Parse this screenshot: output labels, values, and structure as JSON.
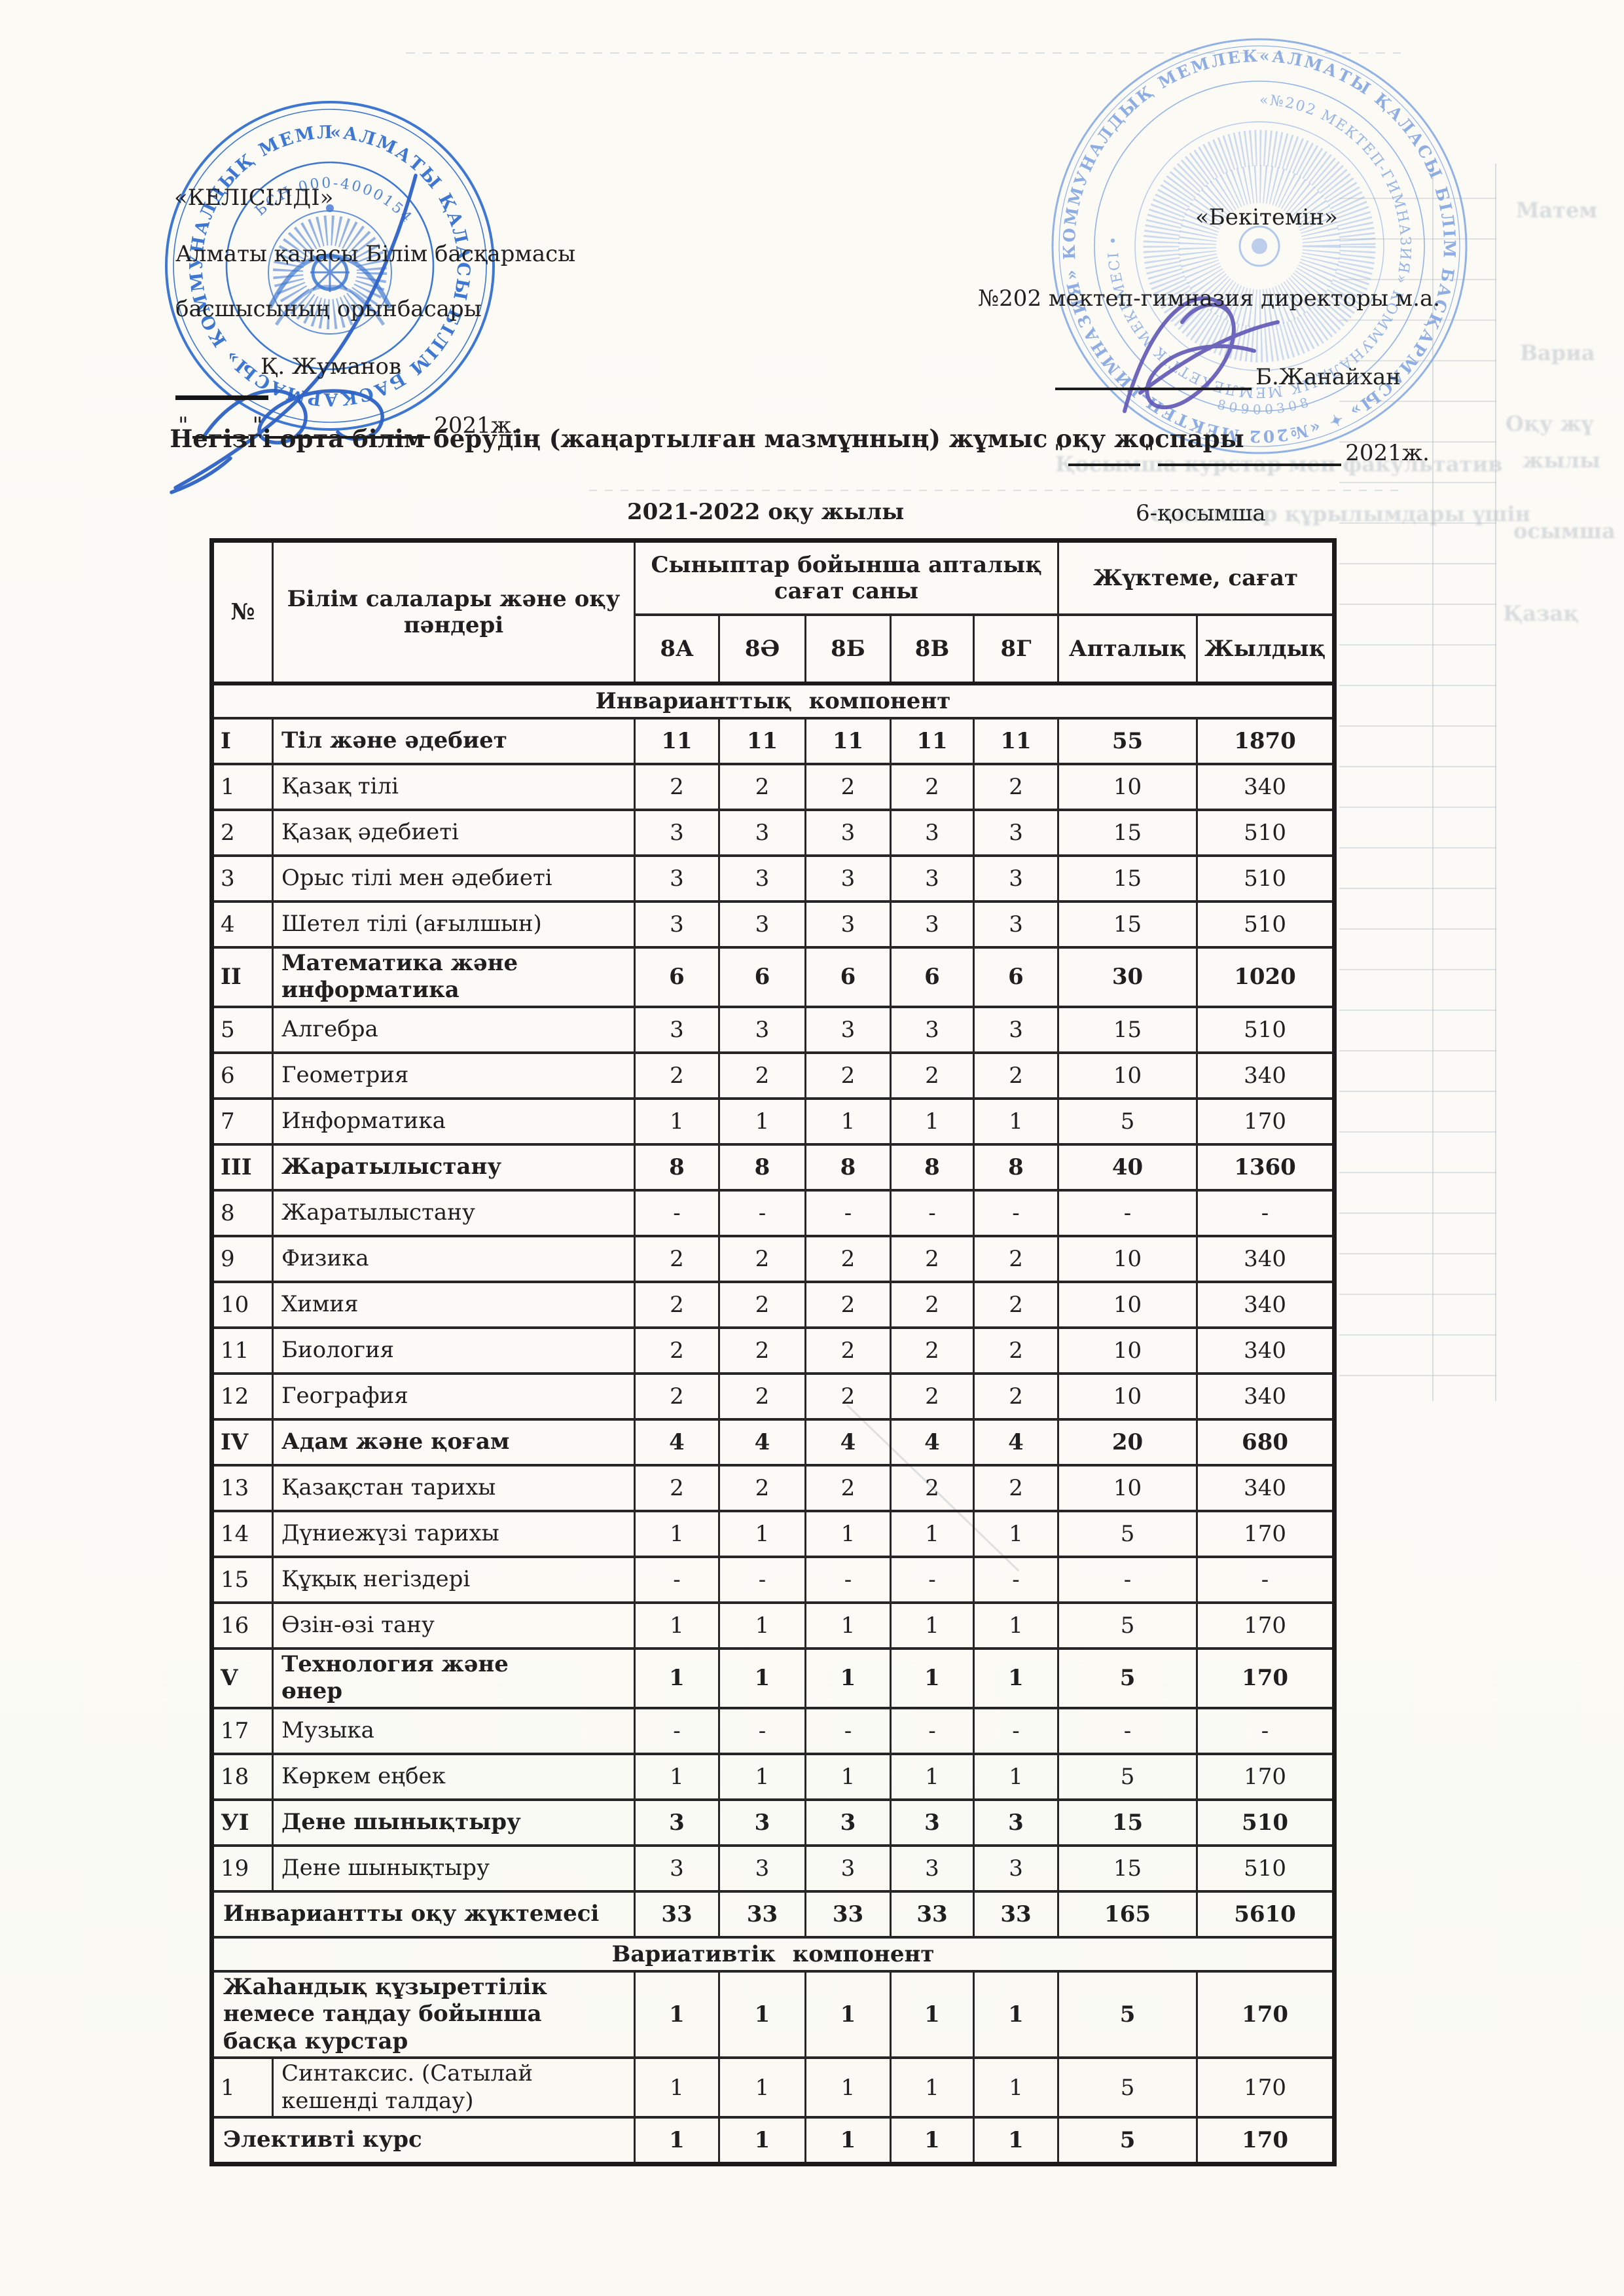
{
  "approval_left": {
    "title": "«КЕЛІСІЛДІ»",
    "org_line1": "Алматы қаласы Білім басқармасы",
    "org_line2": "басшысының орынбасары",
    "signer": "Қ. Жуманов",
    "quote": "\"",
    "year": "2021ж."
  },
  "approval_right": {
    "title": "«Бекітемін»",
    "org_line": "№202 мектеп-гимназия директоры м.а.",
    "signer": "Б.Жанайхан",
    "quote": "\"",
    "year": "2021ж."
  },
  "document": {
    "title": "Негізгі орта білім берудің (жаңартылған мазмұнның)  жұмыс оқу жоспары",
    "school_year": "2021-2022 оқу жылы",
    "appendix": "6-қосымша"
  },
  "table": {
    "header": {
      "num": "№",
      "subject": "Білім салалары және оқу пәндері",
      "classes_group": "Сыныптар бойынша апталық сағат саны",
      "load_group": "Жүктеме, сағат",
      "classes": [
        "8А",
        "8Ә",
        "8Б",
        "8В",
        "8Г"
      ],
      "weekly": "Апталық",
      "yearly": "Жылдық"
    },
    "rows": [
      {
        "type": "section",
        "label": "Инварианттық компонент"
      },
      {
        "type": "group",
        "num": "I",
        "label": "Тіл және әдебиет",
        "values": [
          "11",
          "11",
          "11",
          "11",
          "11",
          "55",
          "1870"
        ]
      },
      {
        "type": "item",
        "num": "1",
        "label": "Қазақ тілі",
        "values": [
          "2",
          "2",
          "2",
          "2",
          "2",
          "10",
          "340"
        ]
      },
      {
        "type": "item",
        "num": "2",
        "label": "Қазақ әдебиеті",
        "values": [
          "3",
          "3",
          "3",
          "3",
          "3",
          "15",
          "510"
        ]
      },
      {
        "type": "item",
        "num": "3",
        "label": "Орыс тілі мен әдебиеті",
        "values": [
          "3",
          "3",
          "3",
          "3",
          "3",
          "15",
          "510"
        ]
      },
      {
        "type": "item",
        "num": "4",
        "label": "Шетел тілі (ағылшын)",
        "values": [
          "3",
          "3",
          "3",
          "3",
          "3",
          "15",
          "510"
        ]
      },
      {
        "type": "group",
        "num": "II",
        "label": "Математика және информатика",
        "values": [
          "6",
          "6",
          "6",
          "6",
          "6",
          "30",
          "1020"
        ]
      },
      {
        "type": "item",
        "num": "5",
        "label": "Алгебра",
        "values": [
          "3",
          "3",
          "3",
          "3",
          "3",
          "15",
          "510"
        ]
      },
      {
        "type": "item",
        "num": "6",
        "label": "Геометрия",
        "values": [
          "2",
          "2",
          "2",
          "2",
          "2",
          "10",
          "340"
        ]
      },
      {
        "type": "item",
        "num": "7",
        "label": "Информатика",
        "values": [
          "1",
          "1",
          "1",
          "1",
          "1",
          "5",
          "170"
        ]
      },
      {
        "type": "group",
        "num": "III",
        "label": "Жаратылыстану",
        "values": [
          "8",
          "8",
          "8",
          "8",
          "8",
          "40",
          "1360"
        ]
      },
      {
        "type": "item",
        "num": "8",
        "label": "Жаратылыстану",
        "values": [
          "-",
          "-",
          "-",
          "-",
          "-",
          "-",
          "-"
        ]
      },
      {
        "type": "item",
        "num": "9",
        "label": "Физика",
        "values": [
          "2",
          "2",
          "2",
          "2",
          "2",
          "10",
          "340"
        ]
      },
      {
        "type": "item",
        "num": "10",
        "label": "Химия",
        "values": [
          "2",
          "2",
          "2",
          "2",
          "2",
          "10",
          "340"
        ]
      },
      {
        "type": "item",
        "num": "11",
        "label": "Биология",
        "values": [
          "2",
          "2",
          "2",
          "2",
          "2",
          "10",
          "340"
        ]
      },
      {
        "type": "item",
        "num": "12",
        "label": "География",
        "values": [
          "2",
          "2",
          "2",
          "2",
          "2",
          "10",
          "340"
        ]
      },
      {
        "type": "group",
        "num": "IV",
        "label": "Адам және қоғам",
        "values": [
          "4",
          "4",
          "4",
          "4",
          "4",
          "20",
          "680"
        ]
      },
      {
        "type": "item",
        "num": "13",
        "label": "Қазақстан тарихы",
        "values": [
          "2",
          "2",
          "2",
          "2",
          "2",
          "10",
          "340"
        ]
      },
      {
        "type": "item",
        "num": "14",
        "label": "Дүниежүзі тарихы",
        "values": [
          "1",
          "1",
          "1",
          "1",
          "1",
          "5",
          "170"
        ]
      },
      {
        "type": "item",
        "num": "15",
        "label": "Құқық негіздері",
        "values": [
          "-",
          "-",
          "-",
          "-",
          "-",
          "-",
          "-"
        ]
      },
      {
        "type": "item",
        "num": "16",
        "label": "Өзін-өзі тану",
        "values": [
          "1",
          "1",
          "1",
          "1",
          "1",
          "5",
          "170"
        ]
      },
      {
        "type": "group",
        "num": "V",
        "label": "Технология және өнер",
        "values": [
          "1",
          "1",
          "1",
          "1",
          "1",
          "5",
          "170"
        ]
      },
      {
        "type": "item",
        "num": "17",
        "label": "Музыка",
        "values": [
          "-",
          "-",
          "-",
          "-",
          "-",
          "-",
          "-"
        ]
      },
      {
        "type": "item",
        "num": "18",
        "label": "Көркем еңбек",
        "values": [
          "1",
          "1",
          "1",
          "1",
          "1",
          "5",
          "170"
        ]
      },
      {
        "type": "group",
        "num": "УІ",
        "label": "Дене шынықтыру",
        "values": [
          "3",
          "3",
          "3",
          "3",
          "3",
          "15",
          "510"
        ]
      },
      {
        "type": "item",
        "num": "19",
        "label": "Дене шынықтыру",
        "values": [
          "3",
          "3",
          "3",
          "3",
          "3",
          "15",
          "510"
        ]
      },
      {
        "type": "total",
        "label": "Инвариантты оқу жүктемесі",
        "values": [
          "33",
          "33",
          "33",
          "33",
          "33",
          "165",
          "5610"
        ]
      },
      {
        "type": "section",
        "label": "Вариативтік компонент"
      },
      {
        "type": "total",
        "label": "Жаһандық құзыреттілік немесе таңдау  бойынша басқа курстар",
        "values": [
          "1",
          "1",
          "1",
          "1",
          "1",
          "5",
          "170"
        ]
      },
      {
        "type": "item",
        "num": "1",
        "label": "Синтаксис. (Сатылай кешенді талдау)",
        "values": [
          "1",
          "1",
          "1",
          "1",
          "1",
          "5",
          "170"
        ]
      },
      {
        "type": "total",
        "label": "Элективті курс",
        "values": [
          "1",
          "1",
          "1",
          "1",
          "1",
          "5",
          "170"
        ]
      }
    ]
  },
  "stamps": {
    "left": {
      "ring_text": "«АЛМАТЫ ҚАЛАСЫ БІЛІМ БАСҚАРМАСЫ» КОММУНАЛДЫҚ МЕМЛЕКЕТТІК МЕКЕМЕСІ",
      "bin_text": "БСН 000-40001547",
      "color": "#2e6ccf"
    },
    "right": {
      "ring_text_outer": "«АЛМАТЫ ҚАЛАСЫ БІЛІМ БАСҚАРМАСЫ» ✦ «№202 МЕКТЕП-ГИМНАЗИЯ» КОММУНАЛДЫҚ МЕМЛЕКЕТТІК МЕКЕМЕСІ ✦",
      "ring_text_inner": "«№202 МЕКТЕП-ГИМНАЗИЯ» КОММУНАЛДЫҚ МЕМЛЕКЕТТІК МЕКЕМЕСІ •",
      "digits": "80900308",
      "color": "#84a9e4"
    }
  },
  "ghost": {
    "fragments": [
      "Қосымша курстар мен факультатив",
      "сыныптар құрылымдары үшін",
      "Матем",
      "Вариа",
      "Оқу жү",
      "жылы",
      "осымша",
      "Қазақ"
    ]
  },
  "colors": {
    "paper": "#fbfaf5",
    "ink": "#1f1f1f",
    "stamp_left_blue": "#2e6ccf",
    "stamp_right_blue": "#84a9e4",
    "signature_left_blue": "#2d62c6",
    "signature_right_purple": "#6058b6"
  }
}
